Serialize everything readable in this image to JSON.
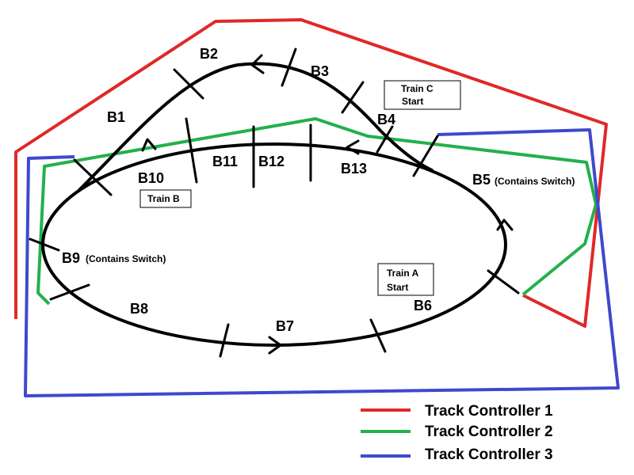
{
  "controllers": [
    {
      "name": "Track Controller 1",
      "color": "#e02828"
    },
    {
      "name": "Track Controller 2",
      "color": "#22b14c"
    },
    {
      "name": "Track Controller 3",
      "color": "#3f48cc"
    }
  ],
  "blocks": {
    "b1": "B1",
    "b2": "B2",
    "b3": "B3",
    "b4": "B4",
    "b5": "B5",
    "b6": "B6",
    "b7": "B7",
    "b8": "B8",
    "b9": "B9",
    "b10": "B10",
    "b11": "B11",
    "b12": "B12",
    "b13": "B13"
  },
  "notes": {
    "b5_switch": "(Contains Switch)",
    "b9_switch": "(Contains Switch)"
  },
  "trains": {
    "c_line1": "Train C",
    "c_line2": "Start",
    "b": "Train B",
    "a_line1": "Train A",
    "a_line2": "Start"
  }
}
